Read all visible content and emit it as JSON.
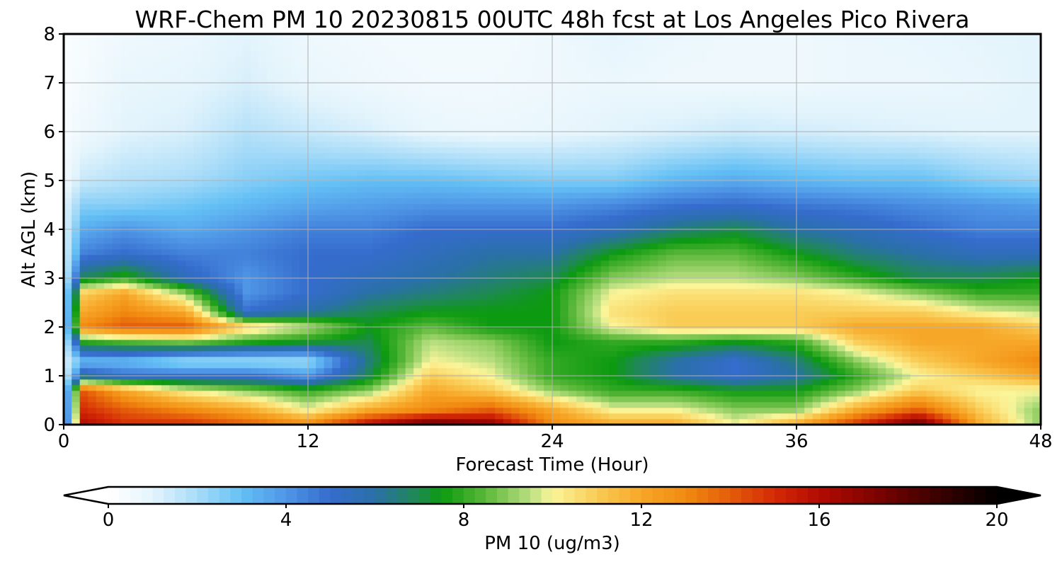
{
  "chart_data": {
    "type": "heatmap",
    "title": "WRF-Chem PM 10  20230815 00UTC 48h fcst at Los Angeles Pico Rivera",
    "xlabel": "Forecast Time (Hour)",
    "ylabel": "Alt AGL (km)",
    "xlim": [
      0,
      48
    ],
    "ylim": [
      0,
      8
    ],
    "x_ticks": [
      0,
      12,
      24,
      36,
      48
    ],
    "y_ticks": [
      0,
      1,
      2,
      3,
      4,
      5,
      6,
      7,
      8
    ],
    "grid": true,
    "colorbar": {
      "label": "PM 10  (ug/m3)",
      "min": 0,
      "max": 20,
      "ticks": [
        0,
        4,
        8,
        12,
        16,
        20
      ],
      "extend": "both",
      "stops": [
        {
          "v": 0,
          "c": "#ffffff"
        },
        {
          "v": 1,
          "c": "#e3f4fc"
        },
        {
          "v": 2,
          "c": "#a9dcf8"
        },
        {
          "v": 3,
          "c": "#64c0f5"
        },
        {
          "v": 4,
          "c": "#4f96e6"
        },
        {
          "v": 5,
          "c": "#356ccd"
        },
        {
          "v": 6,
          "c": "#2a70a8"
        },
        {
          "v": 7,
          "c": "#1e8a50"
        },
        {
          "v": 7.5,
          "c": "#0c9a10"
        },
        {
          "v": 8.5,
          "c": "#5cb83a"
        },
        {
          "v": 9.5,
          "c": "#b9df80"
        },
        {
          "v": 10,
          "c": "#fbf59a"
        },
        {
          "v": 11,
          "c": "#f9cc55"
        },
        {
          "v": 12,
          "c": "#f7a728"
        },
        {
          "v": 13,
          "c": "#f18a10"
        },
        {
          "v": 14,
          "c": "#e45c0a"
        },
        {
          "v": 15,
          "c": "#d42a06"
        },
        {
          "v": 16,
          "c": "#b20b02"
        },
        {
          "v": 17,
          "c": "#8a0400"
        },
        {
          "v": 18,
          "c": "#5a0200"
        },
        {
          "v": 19,
          "c": "#2c0100"
        },
        {
          "v": 20,
          "c": "#000000"
        }
      ]
    },
    "x": [
      0,
      1,
      3,
      6,
      9,
      12,
      15,
      18,
      21,
      24,
      27,
      30,
      33,
      36,
      39,
      42,
      45,
      48
    ],
    "y": [
      0,
      0.3,
      0.7,
      1,
      1.3,
      1.7,
      2,
      2.3,
      2.7,
      3,
      3.5,
      4,
      4.5,
      5,
      6,
      7,
      8
    ],
    "z": [
      [
        1,
        16,
        15,
        15,
        14,
        13,
        16,
        18,
        17,
        13,
        12,
        12,
        10,
        12,
        15,
        18,
        12,
        9
      ],
      [
        1,
        15,
        14,
        13,
        12,
        10,
        12,
        13,
        14,
        12,
        10,
        10,
        9,
        9,
        12,
        14,
        11,
        9
      ],
      [
        1,
        14,
        12,
        10,
        9,
        8,
        9,
        12,
        11,
        9,
        8,
        8,
        7.5,
        7.5,
        9,
        11,
        10,
        10
      ],
      [
        1,
        6,
        5,
        5,
        5,
        4,
        7,
        11,
        10,
        8,
        7.5,
        6,
        5,
        6,
        8,
        10,
        11,
        12
      ],
      [
        1,
        3,
        3,
        2,
        2,
        2,
        6.5,
        10,
        9.5,
        8,
        7.5,
        6,
        5,
        6.5,
        9,
        11,
        12,
        13
      ],
      [
        1,
        8,
        8.5,
        9,
        8,
        7.5,
        7,
        9.5,
        9,
        7.5,
        8,
        8,
        7.5,
        8,
        11,
        12,
        12,
        12
      ],
      [
        1,
        13,
        14,
        14,
        11,
        9.5,
        7.5,
        8.5,
        7.5,
        7.5,
        10,
        11,
        11,
        11,
        12,
        12,
        12,
        11
      ],
      [
        1,
        12,
        13,
        12,
        5,
        6,
        7,
        7.5,
        7.5,
        7.5,
        10.5,
        11,
        11,
        11,
        11,
        11,
        10,
        9.5
      ],
      [
        1,
        11,
        12,
        9,
        4,
        5,
        6,
        6.5,
        7,
        7.5,
        10,
        10.5,
        10.5,
        10.5,
        10,
        9,
        8,
        8
      ],
      [
        1,
        7,
        8,
        5.5,
        4,
        5,
        5.5,
        6,
        6.5,
        7,
        9,
        9.5,
        9.5,
        9,
        8,
        7,
        7,
        7.5
      ],
      [
        1,
        4.5,
        5,
        4.5,
        4.5,
        5,
        5,
        5.5,
        6,
        6,
        7.5,
        8.5,
        8.5,
        7.5,
        6.5,
        6,
        5.5,
        5.5
      ],
      [
        1,
        3.5,
        4,
        3.5,
        4,
        4.5,
        4.5,
        5,
        5,
        5,
        5.5,
        6.5,
        7,
        6,
        5.5,
        5,
        4.5,
        4.5
      ],
      [
        1,
        2.5,
        2.5,
        2.8,
        3.2,
        3.6,
        3.8,
        4,
        4,
        4,
        4.3,
        4.8,
        5,
        4.7,
        4.5,
        4.2,
        4,
        3.8
      ],
      [
        0.5,
        1.5,
        1.8,
        2,
        2.5,
        2.8,
        3,
        3,
        2.8,
        2.6,
        2.6,
        3.2,
        3.5,
        3.2,
        3,
        3,
        2.5,
        2.2
      ],
      [
        0.3,
        0.6,
        1,
        1.2,
        1.8,
        1.5,
        1.2,
        0.8,
        0.7,
        0.8,
        1,
        1.2,
        1.4,
        1.3,
        1.2,
        1.1,
        1,
        1
      ],
      [
        0.2,
        0.4,
        0.8,
        0.9,
        1.2,
        0.8,
        0.6,
        0.5,
        0.5,
        0.6,
        0.7,
        0.6,
        0.6,
        0.6,
        0.7,
        0.7,
        0.8,
        1
      ],
      [
        0.2,
        0.3,
        0.6,
        0.7,
        1,
        0.6,
        0.5,
        0.4,
        0.4,
        0.6,
        0.9,
        0.7,
        0.6,
        0.6,
        0.7,
        0.8,
        0.9,
        1
      ]
    ]
  }
}
